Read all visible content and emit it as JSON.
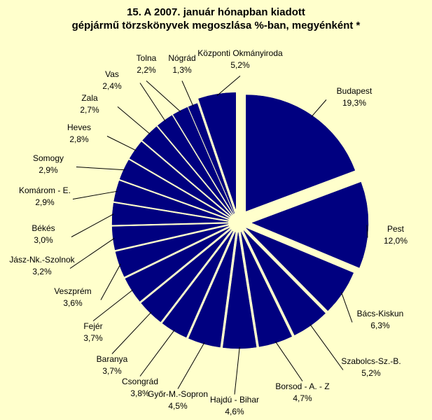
{
  "chart_data": {
    "type": "pie",
    "title": "15. A  2007. január hónapban kiadott",
    "subtitle": "gépjármű törzskönyvek megoszlása %-ban, megyénként *",
    "color": "#000080",
    "background": "#FFFFCC",
    "exploded": true,
    "slices": [
      {
        "name": "Budapest",
        "value_label": "19,3%",
        "value": 19.3
      },
      {
        "name": "Pest",
        "value_label": "12,0%",
        "value": 12.0
      },
      {
        "name": "Bács-Kiskun",
        "value_label": "6,3%",
        "value": 6.3
      },
      {
        "name": "Szabolcs-Sz.-B.",
        "value_label": "5,2%",
        "value": 5.2
      },
      {
        "name": "Borsod - A. - Z",
        "value_label": "4,7%",
        "value": 4.7
      },
      {
        "name": "Hajdú - Bihar",
        "value_label": "4,6%",
        "value": 4.6
      },
      {
        "name": "Győr-M.-Sopron",
        "value_label": "4,5%",
        "value": 4.5
      },
      {
        "name": "Csongrád",
        "value_label": "3,8%",
        "value": 3.8
      },
      {
        "name": "Baranya",
        "value_label": "3,7%",
        "value": 3.7
      },
      {
        "name": "Fejér",
        "value_label": "3,7%",
        "value": 3.7
      },
      {
        "name": "Veszprém",
        "value_label": "3,6%",
        "value": 3.6
      },
      {
        "name": "Jász-Nk.-Szolnok",
        "value_label": "3,2%",
        "value": 3.2
      },
      {
        "name": "Békés",
        "value_label": "3,0%",
        "value": 3.0
      },
      {
        "name": "Komárom - E.",
        "value_label": "2,9%",
        "value": 2.9
      },
      {
        "name": "Somogy",
        "value_label": "2,9%",
        "value": 2.9
      },
      {
        "name": "Heves",
        "value_label": "2,8%",
        "value": 2.8
      },
      {
        "name": "Zala",
        "value_label": "2,7%",
        "value": 2.7
      },
      {
        "name": "Vas",
        "value_label": "2,4%",
        "value": 2.4
      },
      {
        "name": "Tolna",
        "value_label": "2,2%",
        "value": 2.2
      },
      {
        "name": "Nógrád",
        "value_label": "1,3%",
        "value": 1.3
      },
      {
        "name": "Központi Okmányiroda",
        "value_label": "5,2%",
        "value": 5.2
      }
    ]
  }
}
